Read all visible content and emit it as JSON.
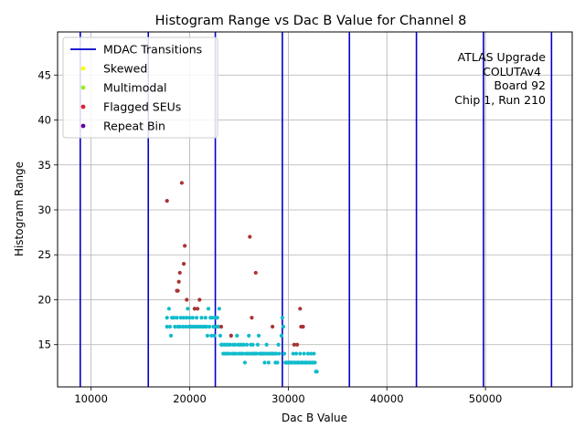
{
  "chart_data": {
    "type": "scatter",
    "title": "Histogram Range vs Dac B Value for Channel 8",
    "xlabel": "Dac B Value",
    "ylabel": "Histogram Range",
    "xlim": [
      6600,
      58800
    ],
    "ylim": [
      10.3,
      49.8
    ],
    "xticks": [
      10000,
      20000,
      30000,
      40000,
      50000
    ],
    "yticks": [
      15,
      20,
      25,
      30,
      35,
      40,
      45
    ],
    "grid": true,
    "legend_position": "top-left",
    "annotation": [
      "ATLAS Upgrade",
      "COLUTAv4",
      "Board 92",
      "Chip 1, Run 210"
    ],
    "legend": [
      {
        "label": "MDAC Transitions",
        "kind": "line",
        "color": "#0000cc"
      },
      {
        "label": "Skewed",
        "kind": "point",
        "color": "#ffff00"
      },
      {
        "label": "Multimodal",
        "kind": "point",
        "color": "#99ee22"
      },
      {
        "label": "Flagged SEUs",
        "kind": "point",
        "color": "#dd2233"
      },
      {
        "label": "Repeat Bin",
        "kind": "point",
        "color": "#660099"
      }
    ],
    "mdac_transitions": [
      8900,
      15800,
      22600,
      29400,
      36200,
      43000,
      49800,
      56700
    ],
    "series": [
      {
        "color": "#11bbcc",
        "points": [
          [
            17700,
            18
          ],
          [
            17700,
            17
          ],
          [
            17900,
            19
          ],
          [
            18000,
            17
          ],
          [
            18100,
            16
          ],
          [
            18200,
            18
          ],
          [
            18400,
            18
          ],
          [
            18500,
            17
          ],
          [
            18700,
            18
          ],
          [
            18800,
            17
          ],
          [
            19000,
            17
          ],
          [
            19100,
            18
          ],
          [
            19300,
            17
          ],
          [
            19400,
            18
          ],
          [
            19600,
            17
          ],
          [
            19700,
            18
          ],
          [
            19800,
            19
          ],
          [
            19900,
            17
          ],
          [
            20000,
            18
          ],
          [
            20100,
            17
          ],
          [
            20200,
            17
          ],
          [
            20300,
            18
          ],
          [
            20400,
            17
          ],
          [
            20500,
            19
          ],
          [
            20600,
            17
          ],
          [
            20700,
            18
          ],
          [
            20800,
            17
          ],
          [
            20900,
            17
          ],
          [
            21100,
            17
          ],
          [
            21200,
            18
          ],
          [
            21300,
            17
          ],
          [
            21500,
            17
          ],
          [
            21600,
            18
          ],
          [
            21700,
            17
          ],
          [
            21800,
            16
          ],
          [
            21900,
            19
          ],
          [
            22000,
            17
          ],
          [
            22100,
            18
          ],
          [
            22200,
            16
          ],
          [
            22300,
            18
          ],
          [
            22400,
            17
          ],
          [
            22500,
            16
          ],
          [
            22600,
            18
          ],
          [
            22700,
            17
          ],
          [
            22800,
            18
          ],
          [
            22900,
            17
          ],
          [
            23000,
            19
          ],
          [
            23100,
            16
          ],
          [
            23200,
            15
          ],
          [
            23300,
            15
          ],
          [
            23400,
            14
          ],
          [
            23500,
            15
          ],
          [
            23600,
            14
          ],
          [
            23700,
            15
          ],
          [
            23800,
            14
          ],
          [
            23900,
            15
          ],
          [
            24000,
            14
          ],
          [
            24100,
            15
          ],
          [
            24200,
            16
          ],
          [
            24300,
            14
          ],
          [
            24400,
            15
          ],
          [
            24500,
            14
          ],
          [
            24600,
            15
          ],
          [
            24700,
            14
          ],
          [
            24800,
            16
          ],
          [
            24900,
            15
          ],
          [
            25000,
            14
          ],
          [
            25100,
            15
          ],
          [
            25200,
            14
          ],
          [
            25300,
            15
          ],
          [
            25400,
            14
          ],
          [
            25500,
            15
          ],
          [
            25600,
            13
          ],
          [
            25700,
            14
          ],
          [
            25800,
            15
          ],
          [
            25900,
            14
          ],
          [
            26000,
            16
          ],
          [
            26100,
            14
          ],
          [
            26200,
            15
          ],
          [
            26300,
            14
          ],
          [
            26400,
            15
          ],
          [
            26500,
            14
          ],
          [
            26600,
            14
          ],
          [
            26700,
            14
          ],
          [
            26800,
            14
          ],
          [
            26900,
            15
          ],
          [
            27000,
            16
          ],
          [
            27100,
            14
          ],
          [
            27200,
            14
          ],
          [
            27300,
            14
          ],
          [
            27400,
            14
          ],
          [
            27500,
            14
          ],
          [
            27600,
            13
          ],
          [
            27700,
            14
          ],
          [
            27800,
            15
          ],
          [
            27900,
            14
          ],
          [
            28000,
            13
          ],
          [
            28100,
            14
          ],
          [
            28200,
            14
          ],
          [
            28300,
            14
          ],
          [
            28400,
            14
          ],
          [
            28500,
            14
          ],
          [
            28600,
            14
          ],
          [
            28700,
            13
          ],
          [
            28800,
            14
          ],
          [
            28900,
            13
          ],
          [
            29000,
            15
          ],
          [
            29100,
            14
          ],
          [
            29300,
            16
          ],
          [
            29400,
            18
          ],
          [
            29500,
            17
          ],
          [
            29600,
            14
          ],
          [
            29700,
            13
          ],
          [
            29800,
            13
          ],
          [
            29900,
            13
          ],
          [
            30000,
            13
          ],
          [
            30100,
            13
          ],
          [
            30200,
            13
          ],
          [
            30300,
            13
          ],
          [
            30400,
            13
          ],
          [
            30500,
            14
          ],
          [
            30600,
            13
          ],
          [
            30700,
            13
          ],
          [
            30800,
            14
          ],
          [
            30900,
            13
          ],
          [
            31000,
            13
          ],
          [
            31100,
            13
          ],
          [
            31200,
            14
          ],
          [
            31300,
            13
          ],
          [
            31400,
            13
          ],
          [
            31500,
            13
          ],
          [
            31600,
            14
          ],
          [
            31700,
            13
          ],
          [
            31800,
            13
          ],
          [
            31900,
            13
          ],
          [
            32000,
            14
          ],
          [
            32100,
            13
          ],
          [
            32200,
            13
          ],
          [
            32300,
            14
          ],
          [
            32400,
            13
          ],
          [
            32500,
            13
          ],
          [
            32600,
            14
          ],
          [
            32700,
            13
          ],
          [
            32800,
            12
          ],
          [
            32900,
            12
          ]
        ]
      },
      {
        "color": "#aa3333",
        "points": [
          [
            17700,
            31
          ],
          [
            18700,
            21
          ],
          [
            18800,
            21
          ],
          [
            18900,
            22
          ],
          [
            19000,
            23
          ],
          [
            19200,
            33
          ],
          [
            19400,
            24
          ],
          [
            19500,
            26
          ],
          [
            19700,
            20
          ],
          [
            20500,
            19
          ],
          [
            20800,
            19
          ],
          [
            21000,
            20
          ],
          [
            23200,
            17
          ],
          [
            24200,
            16
          ],
          [
            26100,
            27
          ],
          [
            26300,
            18
          ],
          [
            26700,
            23
          ],
          [
            28400,
            17
          ],
          [
            30600,
            15
          ],
          [
            30900,
            15
          ],
          [
            31200,
            19
          ],
          [
            31300,
            17
          ],
          [
            31500,
            17
          ]
        ]
      }
    ]
  }
}
